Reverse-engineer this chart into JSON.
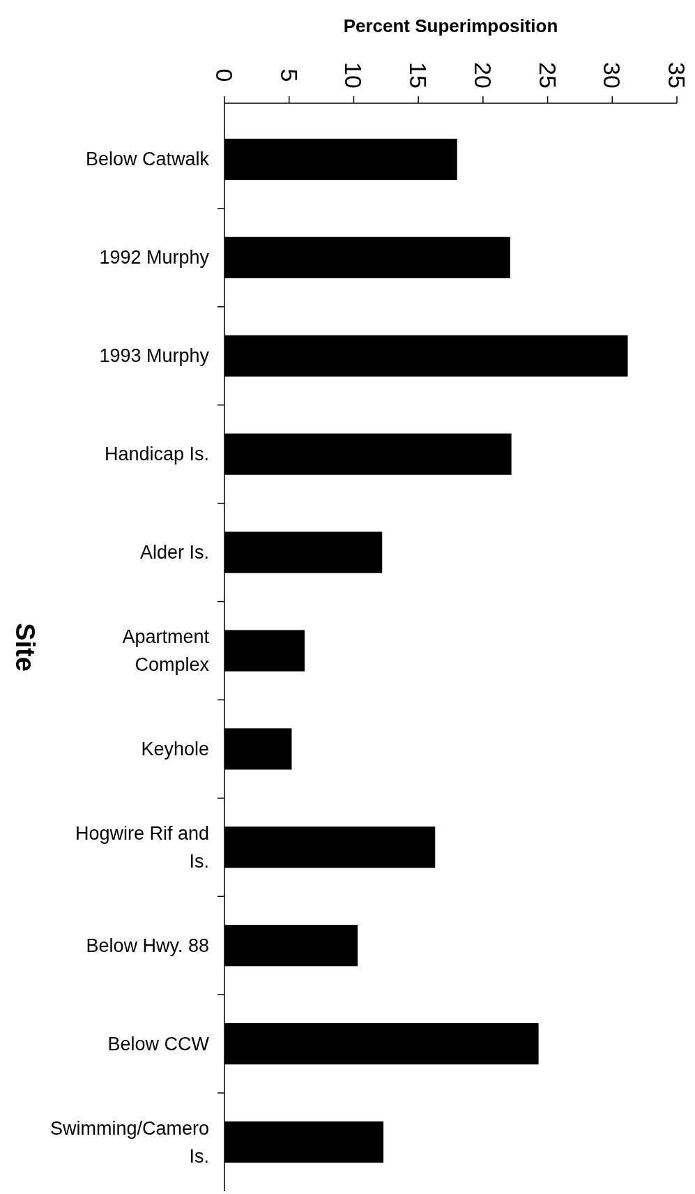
{
  "chart_data": {
    "type": "bar",
    "orientation": "horizontal",
    "xlabel": "Percent Superimposition",
    "ylabel": "Site",
    "categories": [
      "Below Catwalk",
      "1992 Murphy",
      "1993 Murphy",
      "Handicap Is.",
      "Alder Is.",
      "Apartment Complex",
      "Keyhole",
      "Hogwire Rif and Is.",
      "Below Hwy. 88",
      "Below CCW",
      "Swimming/Camero Is."
    ],
    "values": [
      18.0,
      22.1,
      31.2,
      22.2,
      12.2,
      6.2,
      5.2,
      16.3,
      10.3,
      24.3,
      12.3
    ],
    "color": "#000000",
    "xlim": [
      0,
      35
    ],
    "xticks": [
      0,
      5,
      10,
      15,
      20,
      25,
      30,
      35
    ],
    "grid": false
  }
}
